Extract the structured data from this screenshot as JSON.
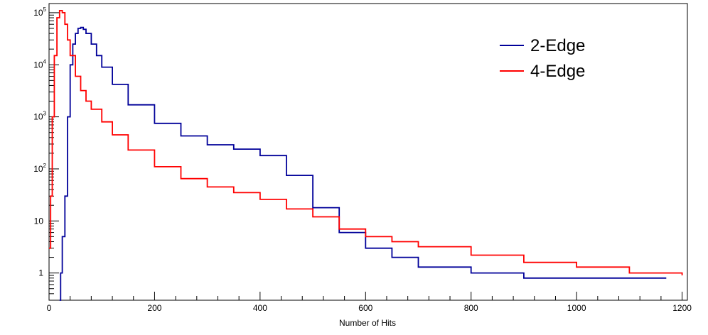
{
  "chart_data": {
    "type": "line",
    "title": "",
    "xlabel": "Number of Hits",
    "ylabel": "",
    "xlim": [
      0,
      1210
    ],
    "ylim": [
      0.3,
      150000
    ],
    "yscale": "log",
    "grid": false,
    "legend_position": "top-right",
    "x_ticks": [
      0,
      200,
      400,
      600,
      800,
      1000,
      1200
    ],
    "y_ticks": [
      {
        "value": 1,
        "label": "1",
        "sup": ""
      },
      {
        "value": 10,
        "label": "10",
        "sup": ""
      },
      {
        "value": 100,
        "label": "10",
        "sup": "2"
      },
      {
        "value": 1000,
        "label": "10",
        "sup": "3"
      },
      {
        "value": 10000,
        "label": "10",
        "sup": "4"
      },
      {
        "value": 100000,
        "label": "10",
        "sup": "5"
      }
    ],
    "series": [
      {
        "name": "2-Edge",
        "color": "#000099",
        "x": [
          20,
          22,
          25,
          30,
          35,
          40,
          45,
          50,
          55,
          60,
          65,
          70,
          80,
          90,
          100,
          120,
          150,
          200,
          250,
          300,
          350,
          400,
          450,
          500,
          550,
          600,
          650,
          700,
          800,
          900,
          1000,
          1100,
          1170
        ],
        "y": [
          0.3,
          1,
          5,
          30,
          1000,
          10000,
          25000,
          40000,
          50000,
          52000,
          48000,
          40000,
          25000,
          15000,
          9000,
          4200,
          1700,
          750,
          430,
          290,
          240,
          180,
          75,
          18,
          6,
          3,
          2,
          1.3,
          1,
          0.8,
          0.8,
          0.8,
          0.8
        ]
      },
      {
        "name": "4-Edge",
        "color": "#ff0000",
        "x": [
          0,
          3,
          6,
          10,
          15,
          20,
          25,
          30,
          35,
          40,
          50,
          60,
          70,
          80,
          100,
          120,
          150,
          200,
          250,
          300,
          350,
          400,
          450,
          500,
          550,
          600,
          650,
          700,
          800,
          900,
          1000,
          1100,
          1200
        ],
        "y": [
          3,
          30,
          1000,
          15000,
          80000,
          110000,
          100000,
          60000,
          30000,
          15000,
          6000,
          3200,
          2000,
          1400,
          800,
          450,
          230,
          110,
          65,
          45,
          35,
          26,
          17,
          12,
          7,
          5,
          4,
          3.2,
          2.2,
          1.6,
          1.3,
          1.0,
          0.9
        ]
      }
    ]
  }
}
